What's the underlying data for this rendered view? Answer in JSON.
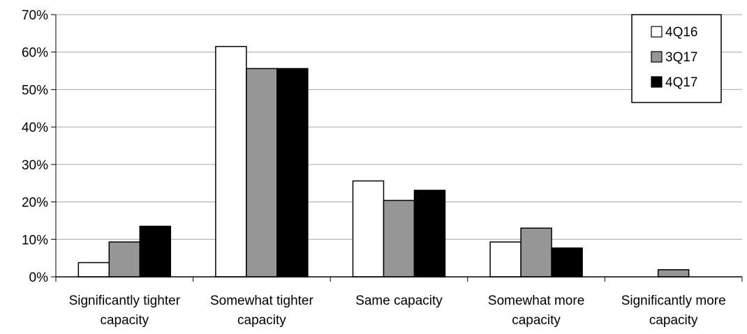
{
  "chart_data": {
    "type": "bar",
    "categories": [
      [
        "Significantly tighter",
        "capacity"
      ],
      [
        "Somewhat tighter",
        "capacity"
      ],
      [
        "Same capacity"
      ],
      [
        "Somewhat more",
        "capacity"
      ],
      [
        "Significantly more",
        "capacity"
      ]
    ],
    "series": [
      {
        "name": "4Q16",
        "color": "#ffffff",
        "values": [
          3.8,
          61.5,
          25.6,
          9.3,
          0
        ]
      },
      {
        "name": "3Q17",
        "color": "#969696",
        "values": [
          9.3,
          55.6,
          20.4,
          13.0,
          1.9
        ]
      },
      {
        "name": "4Q17",
        "color": "#000000",
        "values": [
          13.5,
          55.6,
          23.1,
          7.7,
          0
        ]
      }
    ],
    "yticks": [
      "0%",
      "10%",
      "20%",
      "30%",
      "40%",
      "50%",
      "60%",
      "70%"
    ],
    "ylim": [
      0,
      70
    ],
    "grid": true,
    "legend_position": "top-right",
    "title": "",
    "xlabel": "",
    "ylabel": ""
  }
}
